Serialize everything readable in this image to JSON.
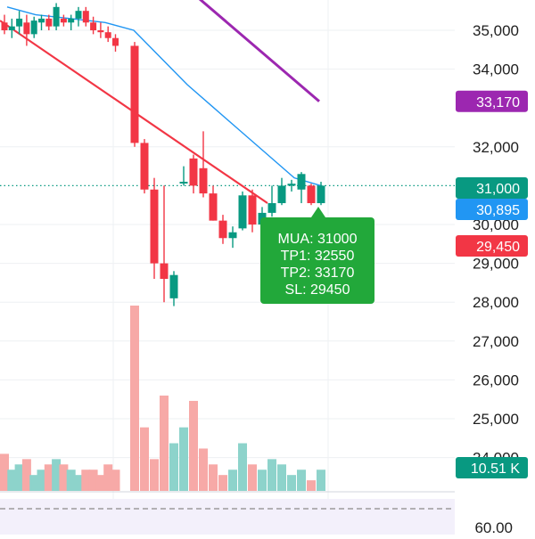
{
  "chart_data": {
    "type": "candlestick",
    "price_axis": {
      "ticks": [
        35000,
        34000,
        32000,
        31000,
        30000,
        29000,
        28000,
        27000,
        26000,
        25000,
        24000
      ],
      "tick_labels": [
        "35,000",
        "34,000",
        "32,000",
        "31,000",
        "30,000",
        "29,000",
        "28,000",
        "27,000",
        "26,000",
        "25,000",
        "24,000"
      ],
      "range": [
        23700,
        35700
      ]
    },
    "candles": [
      {
        "o": 35200,
        "h": 35400,
        "l": 34900,
        "c": 35000
      },
      {
        "o": 35000,
        "h": 35300,
        "l": 34800,
        "c": 35100
      },
      {
        "o": 35100,
        "h": 35500,
        "l": 34900,
        "c": 35300
      },
      {
        "o": 35200,
        "h": 35400,
        "l": 34600,
        "c": 34900
      },
      {
        "o": 34900,
        "h": 35350,
        "l": 34800,
        "c": 35250
      },
      {
        "o": 35200,
        "h": 35400,
        "l": 35000,
        "c": 35300
      },
      {
        "o": 35300,
        "h": 35400,
        "l": 35000,
        "c": 35100
      },
      {
        "o": 35100,
        "h": 35700,
        "l": 35000,
        "c": 35600
      },
      {
        "o": 35300,
        "h": 35400,
        "l": 35100,
        "c": 35200
      },
      {
        "o": 35200,
        "h": 35400,
        "l": 35000,
        "c": 35300
      },
      {
        "o": 35300,
        "h": 35600,
        "l": 35100,
        "c": 35500
      },
      {
        "o": 35500,
        "h": 35600,
        "l": 35100,
        "c": 35200
      },
      {
        "o": 35200,
        "h": 35350,
        "l": 34900,
        "c": 35000
      },
      {
        "o": 35000,
        "h": 35200,
        "l": 34800,
        "c": 34950
      },
      {
        "o": 34950,
        "h": 35100,
        "l": 34700,
        "c": 34800
      },
      {
        "o": 34800,
        "h": 34900,
        "l": 34450,
        "c": 34600
      },
      {
        "o": 34600,
        "h": 34700,
        "l": 32000,
        "c": 32100
      },
      {
        "o": 32100,
        "h": 32200,
        "l": 30800,
        "c": 30900
      },
      {
        "o": 30900,
        "h": 31200,
        "l": 28600,
        "c": 29000
      },
      {
        "o": 29000,
        "h": 31000,
        "l": 28000,
        "c": 28600
      },
      {
        "o": 28100,
        "h": 28800,
        "l": 27900,
        "c": 28700
      },
      {
        "o": 31100,
        "h": 31500,
        "l": 31000,
        "c": 31100
      },
      {
        "o": 31700,
        "h": 31800,
        "l": 30800,
        "c": 31000
      },
      {
        "o": 31450,
        "h": 32400,
        "l": 30700,
        "c": 30800
      },
      {
        "o": 30800,
        "h": 31000,
        "l": 30100,
        "c": 30100
      },
      {
        "o": 30100,
        "h": 30250,
        "l": 29500,
        "c": 29650
      },
      {
        "o": 29650,
        "h": 29950,
        "l": 29400,
        "c": 29800
      },
      {
        "o": 29900,
        "h": 30850,
        "l": 29850,
        "c": 30750
      },
      {
        "o": 30750,
        "h": 30900,
        "l": 29800,
        "c": 30000
      },
      {
        "o": 30000,
        "h": 30450,
        "l": 29950,
        "c": 30300
      },
      {
        "o": 30300,
        "h": 31000,
        "l": 30200,
        "c": 30550
      },
      {
        "o": 30550,
        "h": 31200,
        "l": 30500,
        "c": 31000
      },
      {
        "o": 31000,
        "h": 31150,
        "l": 30850,
        "c": 31050
      },
      {
        "o": 30900,
        "h": 31350,
        "l": 30550,
        "c": 31300
      },
      {
        "o": 31000,
        "h": 31050,
        "l": 30500,
        "c": 30550
      },
      {
        "o": 30550,
        "h": 31100,
        "l": 30500,
        "c": 31000
      }
    ],
    "volume": [
      7,
      4,
      5,
      6,
      3,
      4,
      5,
      6,
      5,
      4,
      3,
      4,
      4,
      3,
      5,
      4,
      35,
      12,
      6,
      18,
      9,
      12,
      17,
      8,
      5,
      3,
      4,
      9,
      5,
      4,
      6,
      5,
      3,
      4,
      2,
      4
    ],
    "ma_line": [
      [
        8,
        35600
      ],
      [
        40,
        35400
      ],
      [
        80,
        35300
      ],
      [
        118,
        35200
      ],
      [
        150,
        35000
      ],
      [
        180,
        34300
      ],
      [
        210,
        33600
      ],
      [
        240,
        33000
      ],
      [
        270,
        32400
      ],
      [
        300,
        31800
      ],
      [
        330,
        31200
      ],
      [
        360,
        31000
      ]
    ],
    "trendline_red": {
      "from": [
        0,
        35250
      ],
      "to": [
        300,
        30550
      ]
    },
    "trendline_purple": {
      "from": [
        214,
        36000
      ],
      "to": [
        358,
        33170
      ]
    },
    "horizontal_level": 31000,
    "price_tags": [
      {
        "value": 33170,
        "label": "33,170",
        "color": "#9c27b0"
      },
      {
        "value": 31000,
        "label": "31,000",
        "color": "#089981"
      },
      {
        "value": 30895,
        "label": "30,895",
        "color": "#2196f3"
      },
      {
        "value": 29450,
        "label": "29,450",
        "color": "#f23645"
      }
    ],
    "volume_tag": {
      "label": "10.51 K",
      "color": "#089981"
    },
    "callout": {
      "lines": [
        "MUA: 31000",
        "TP1: 32550",
        "TP2: 33170",
        "SL: 29450"
      ],
      "color": "#22a83a"
    },
    "indicator_pane": {
      "label": "60.00"
    },
    "colors": {
      "up": "#089981",
      "down": "#f23645",
      "ma": "#2196f3",
      "trend_red": "#f23645",
      "trend_purple": "#9c27b0"
    }
  }
}
